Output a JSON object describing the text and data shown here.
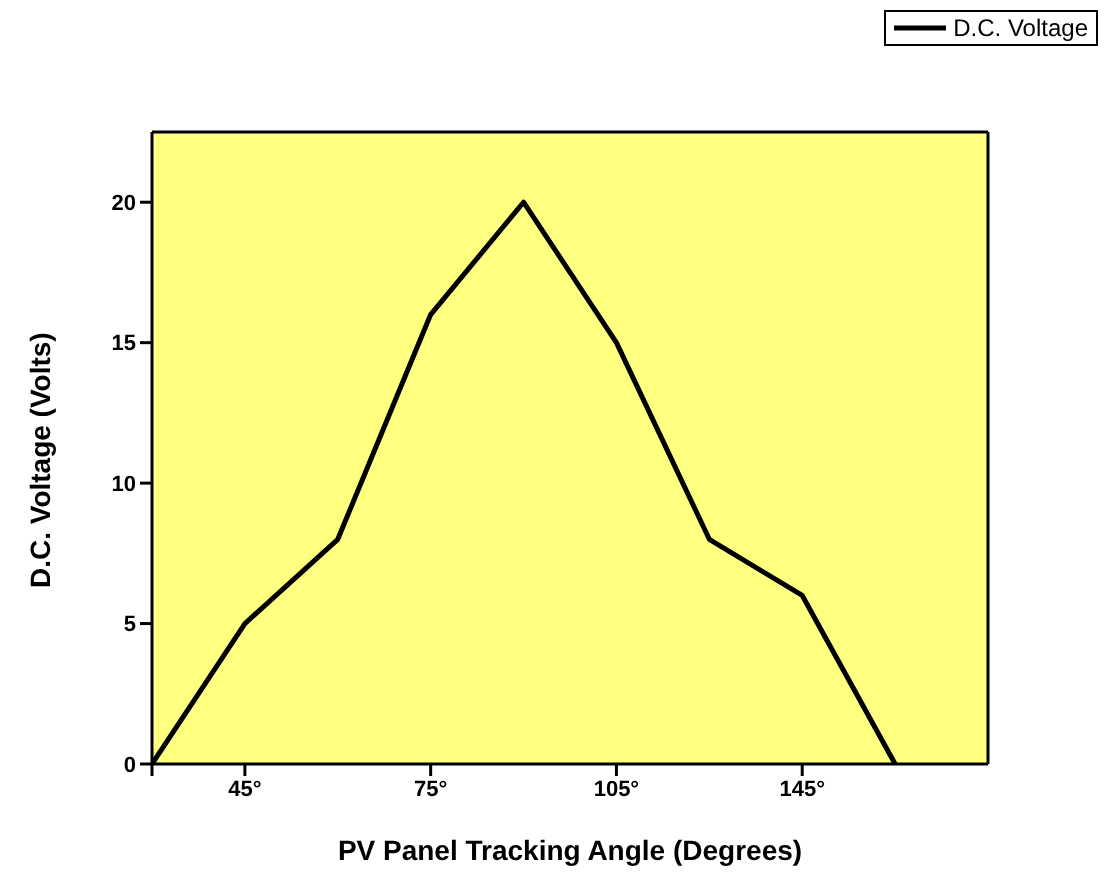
{
  "chart_data": {
    "type": "line",
    "xlabel": "PV Panel Tracking  Angle (Degrees)",
    "ylabel": "D.C. Voltage (Volts)",
    "categories": [
      null,
      "45°",
      null,
      "75°",
      null,
      "105°",
      null,
      "145°",
      null
    ],
    "series": [
      {
        "name": "D.C. Voltage",
        "color": "#000000",
        "values": [
          0,
          5,
          8,
          16,
          20,
          15,
          8,
          6,
          0
        ]
      }
    ],
    "ylim": [
      0,
      22.5
    ],
    "yticks": [
      0,
      5,
      10,
      15,
      20
    ],
    "grid": false,
    "legend": "top right",
    "marker": "none",
    "line_style": "solid"
  }
}
